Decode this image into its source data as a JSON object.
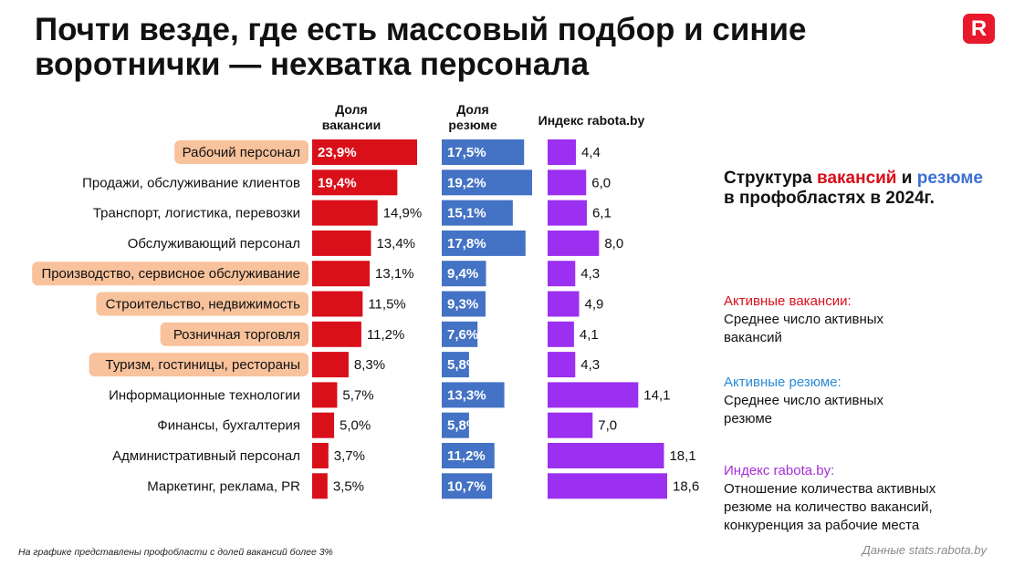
{
  "title": "Почти везде, где есть массовый подбор и синие воротнички — нехватка персонала",
  "logo": "R",
  "columns": {
    "vacancies": "Доля вакансии",
    "resumes": "Доля резюме",
    "index": "Индекс rabota.by"
  },
  "legend": {
    "title_part1": "Структура ",
    "title_red": "вакансий",
    "title_part2": " и ",
    "title_blue": "резюме",
    "title_part3": " в профобластях в 2024г.",
    "vacancies_heading": "Активные вакансии:",
    "vacancies_text": "Среднее число активных вакансий",
    "resumes_heading": "Активные резюме:",
    "resumes_text": "Среднее число активных резюме",
    "index_heading": "Индекс rabota.by:",
    "index_text": "Отношение количества активных резюме на количество вакансий, конкуренция за рабочие места"
  },
  "footnote": "На графике представлены профобласти с долей вакансий более 3%",
  "source": "Данные stats.rabota.by",
  "colors": {
    "vacancy": "#d90f1a",
    "resume": "#4472c4",
    "index": "#9b30f0",
    "highlight": "#f8c29c"
  },
  "chart_data": {
    "type": "bar",
    "categories": [
      "Рабочий персонал",
      "Продажи, обслуживание клиентов",
      "Транспорт, логистика, перевозки",
      "Обслуживающий персонал",
      "Производство, сервисное обслуживание",
      "Строительство, недвижимость",
      "Розничная торговля",
      "Туризм, гостиницы, рестораны",
      "Информационные технологии",
      "Финансы, бухгалтерия",
      "Административный персонал",
      "Маркетинг, реклама, PR"
    ],
    "highlighted": [
      true,
      false,
      false,
      false,
      true,
      true,
      true,
      true,
      false,
      false,
      false,
      false
    ],
    "series": [
      {
        "name": "Доля вакансии",
        "values": [
          23.9,
          19.4,
          14.9,
          13.4,
          13.1,
          11.5,
          11.2,
          8.3,
          5.7,
          5.0,
          3.7,
          3.5
        ],
        "labels": [
          "23,9%",
          "19,4%",
          "14,9%",
          "13,4%",
          "13,1%",
          "11,5%",
          "11,2%",
          "8,3%",
          "5,7%",
          "5,0%",
          "3,7%",
          "3,5%"
        ]
      },
      {
        "name": "Доля резюме",
        "values": [
          17.5,
          19.2,
          15.1,
          17.8,
          9.4,
          9.3,
          7.6,
          5.8,
          13.3,
          5.8,
          11.2,
          10.7
        ],
        "labels": [
          "17,5%",
          "19,2%",
          "15,1%",
          "17,8%",
          "9,4%",
          "9,3%",
          "7,6%",
          "5,8%",
          "13,3%",
          "5,8%",
          "11,2%",
          "10,7%"
        ]
      },
      {
        "name": "Индекс rabota.by",
        "values": [
          4.4,
          6.0,
          6.1,
          8.0,
          4.3,
          4.9,
          4.1,
          4.3,
          14.1,
          7.0,
          18.1,
          18.6
        ],
        "labels": [
          "4,4",
          "6,0",
          "6,1",
          "8,0",
          "4,3",
          "4,9",
          "4,1",
          "4,3",
          "14,1",
          "7,0",
          "18,1",
          "18,6"
        ]
      }
    ]
  }
}
